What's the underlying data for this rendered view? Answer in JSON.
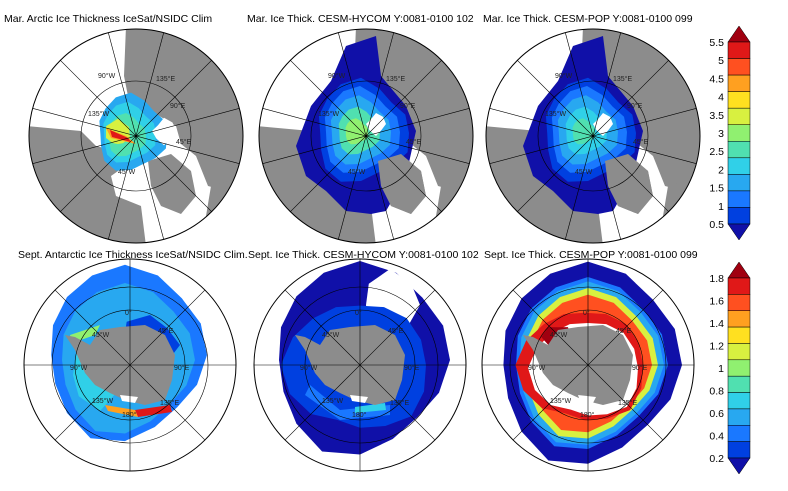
{
  "titles": {
    "arctic_obs": "Mar. Arctic Ice Thickness IceSat/NSIDC Clim",
    "arctic_hycom": "Mar. Ice Thick. CESM-HYCOM Y:0081-0100 102",
    "arctic_pop": "Mar. Ice Thick. CESM-POP Y:0081-0100 099",
    "antarctic_obs": "Sept. Antarctic Ice Thickness IceSat/NSIDC Clim.",
    "antarctic_hycom": "Sept. Ice Thick. CESM-HYCOM Y:0081-0100 102",
    "antarctic_pop": "Sept. Ice Thick. CESM-POP Y:0081-0100 099"
  },
  "arctic_labels": [
    "135°W",
    "90°W",
    "45°W",
    "135°E",
    "90°E",
    "45°E"
  ],
  "antarctic_labels": [
    "45°W",
    "90°W",
    "135°W",
    "45°E",
    "90°E",
    "135°E",
    "180°",
    "0°"
  ],
  "colorbar_top": {
    "labels": [
      "5.5",
      "5",
      "4.5",
      "4",
      "3.5",
      "3",
      "2.5",
      "2",
      "1.5",
      "1",
      "0.5"
    ]
  },
  "colorbar_bottom": {
    "labels": [
      "1.8",
      "1.6",
      "1.4",
      "1.2",
      "1",
      "0.8",
      "0.6",
      "0.4",
      "0.2"
    ]
  },
  "colors": {
    "land": "#8c8c8c",
    "ocean": "#ffffff",
    "scale": [
      "#1010a8",
      "#0040e0",
      "#1a78ff",
      "#28a8f0",
      "#30d0e8",
      "#50e0b0",
      "#90f070",
      "#d8f040",
      "#ffe020",
      "#ffa020",
      "#ff5020",
      "#e01818",
      "#a00010"
    ]
  }
}
